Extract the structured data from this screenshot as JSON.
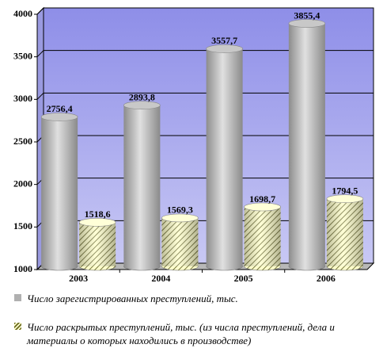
{
  "chart_data": {
    "type": "bar3d",
    "categories": [
      "2003",
      "2004",
      "2005",
      "2006"
    ],
    "series": [
      {
        "name": "Число зарегистрированных преступлений, тыс.",
        "color": "#b0b0b0",
        "values": [
          2756.4,
          2893.8,
          3557.7,
          3855.4
        ],
        "value_labels": [
          "2756,4",
          "2893,8",
          "3557,7",
          "3855,4"
        ]
      },
      {
        "name": "Число раскрытых преступлений, тыс. (из числа преступлений, дела и материалы о которых находились в производстве)",
        "color": "#ffffcc",
        "values": [
          1518.6,
          1569.3,
          1698.7,
          1794.5
        ],
        "value_labels": [
          "1518,6",
          "1569,3",
          "1698,7",
          "1794,5"
        ]
      }
    ],
    "ylim": [
      1000,
      4000
    ],
    "yticks": [
      1000,
      1500,
      2000,
      2500,
      3000,
      3500,
      4000
    ],
    "grid": true
  }
}
